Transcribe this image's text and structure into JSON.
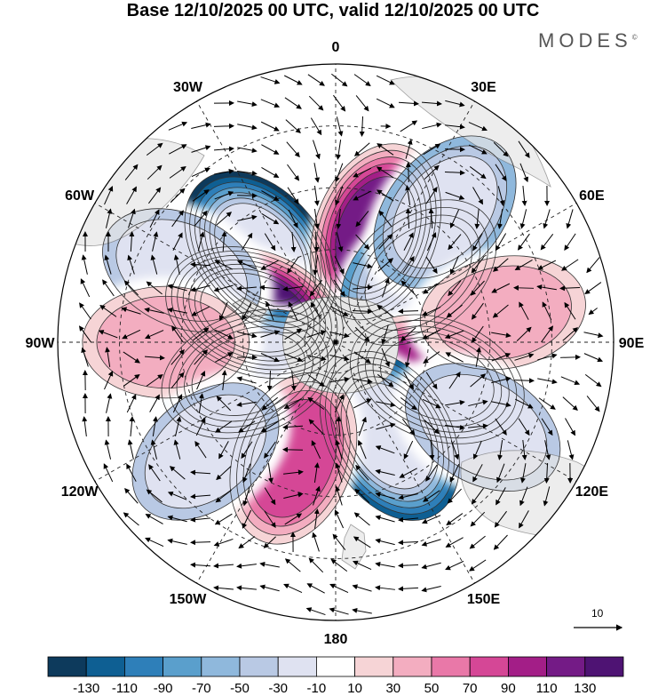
{
  "header": {
    "title": "Base 12/10/2025 00 UTC, valid 12/10/2025 00 UTC",
    "brand": "MODES",
    "brand_mark": "©"
  },
  "map": {
    "projection": "south-polar-stereographic",
    "longitude_labels": [
      "0",
      "30E",
      "60E",
      "90E",
      "120E",
      "150E",
      "180",
      "150W",
      "120W",
      "90W",
      "60W",
      "30W"
    ]
  },
  "reference_vector": {
    "label": "10"
  },
  "colorbar": {
    "labels": [
      "-130",
      "-110",
      "-90",
      "-70",
      "-50",
      "-30",
      "-10",
      "10",
      "30",
      "50",
      "70",
      "90",
      "110",
      "130"
    ],
    "colors": [
      "#0d3a5c",
      "#0e5f93",
      "#2e7fb9",
      "#5a9fcc",
      "#8fb8dc",
      "#b9c9e4",
      "#dfe2f1",
      "#ffffff",
      "#f6d4d6",
      "#f3adc0",
      "#e978a8",
      "#d54796",
      "#a31e87",
      "#741b86",
      "#4e1373"
    ]
  },
  "chart_data": {
    "type": "heatmap",
    "title": "Base 12/10/2025 00 UTC, valid 12/10/2025 00 UTC",
    "field": "anomaly contours with wind vectors",
    "levels": [
      -130,
      -110,
      -90,
      -70,
      -50,
      -30,
      -10,
      10,
      30,
      50,
      70,
      90,
      110,
      130
    ],
    "centers": [
      {
        "sign": "negative",
        "longitude": "40W",
        "latitude": -52,
        "peak": -130
      },
      {
        "sign": "positive",
        "longitude": "20E",
        "latitude": -52,
        "peak": 110
      },
      {
        "sign": "positive",
        "longitude": "70W",
        "latitude": -62,
        "peak": 130
      },
      {
        "sign": "negative",
        "longitude": "50E",
        "latitude": -55,
        "peak": -70
      },
      {
        "sign": "negative",
        "longitude": "110W",
        "latitude": -60,
        "peak": -90
      },
      {
        "sign": "positive",
        "longitude": "110E",
        "latitude": -55,
        "peak": 90
      },
      {
        "sign": "negative",
        "longitude": "150E",
        "latitude": -55,
        "peak": -110
      },
      {
        "sign": "positive",
        "longitude": "160W",
        "latitude": -50,
        "peak": 70
      },
      {
        "sign": "negative",
        "longitude": "40E",
        "latitude": -35,
        "peak": -50
      },
      {
        "sign": "negative",
        "longitude": "65W",
        "latitude": -35,
        "peak": -30
      },
      {
        "sign": "positive",
        "longitude": "80E",
        "latitude": -35,
        "peak": 30
      },
      {
        "sign": "positive",
        "longitude": "90W",
        "latitude": -35,
        "peak": 30
      },
      {
        "sign": "negative",
        "longitude": "130W",
        "latitude": -35,
        "peak": -30
      },
      {
        "sign": "negative",
        "longitude": "120E",
        "latitude": -35,
        "peak": -30
      }
    ]
  }
}
